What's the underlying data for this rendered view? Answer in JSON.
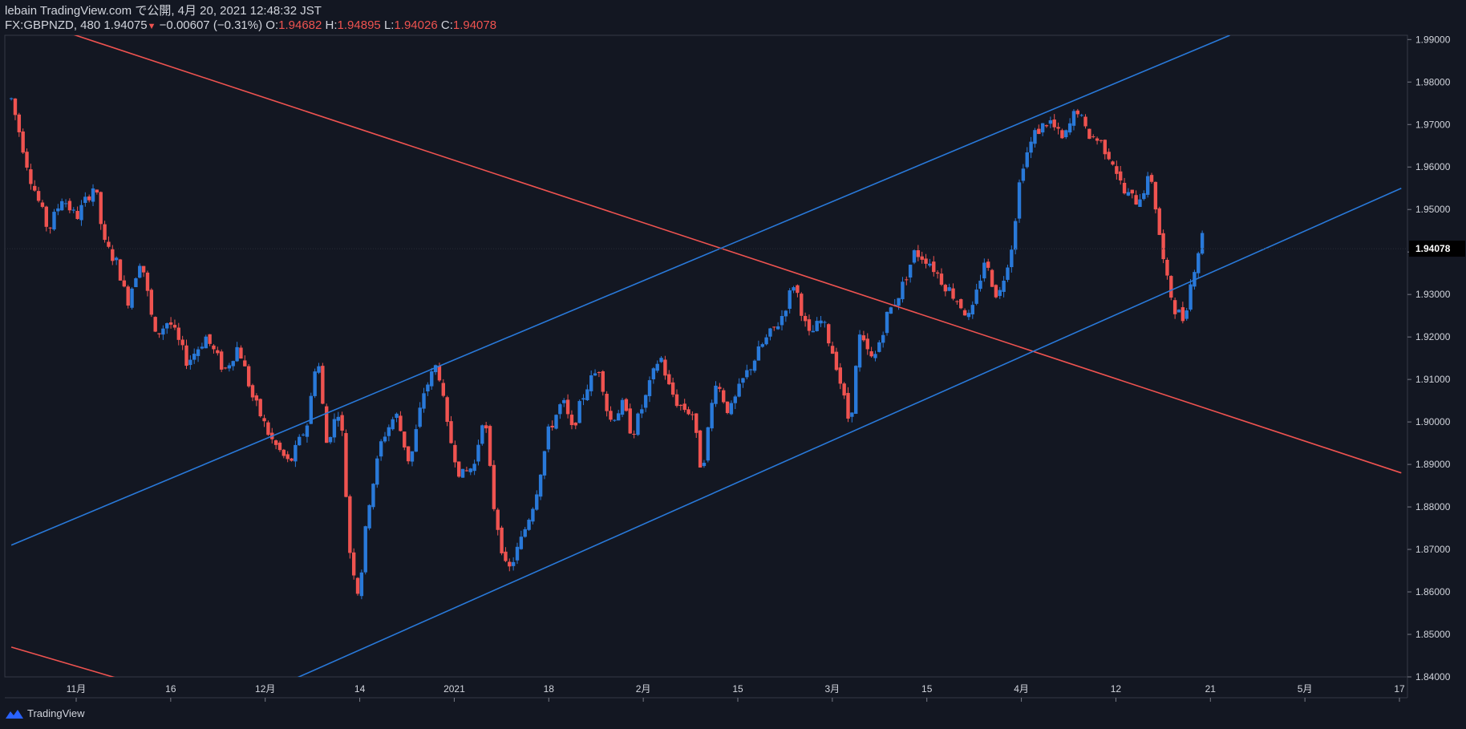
{
  "header": {
    "publish_line": "lebain TradingView.com で公開, 4月 20, 2021 12:48:32 JST",
    "symbol": "FX:GBPNZD, 480",
    "last": "1.94075",
    "change": "−0.00607 (−0.31%)",
    "o_label": "O:",
    "o": "1.94682",
    "h_label": "H:",
    "h": "1.94895",
    "l_label": "L:",
    "l": "1.94026",
    "c_label": "C:",
    "c": "1.94078"
  },
  "branding": {
    "label": "TradingView",
    "icon": "tradingview-logo-icon"
  },
  "colors": {
    "background": "#131722",
    "up": "#2979d9",
    "down": "#ef5350",
    "text": "#d1d4dc",
    "axis": "#363a45",
    "price_badge_bg": "#000000"
  },
  "chart_data": {
    "type": "candlestick",
    "title": "FX:GBPNZD, 480",
    "ylim": [
      1.84,
      1.991
    ],
    "y_ticks": [
      "1.99000",
      "1.98000",
      "1.97000",
      "1.96000",
      "1.95000",
      "1.94000",
      "1.93000",
      "1.92000",
      "1.91000",
      "1.90000",
      "1.89000",
      "1.88000",
      "1.87000",
      "1.86000",
      "1.85000",
      "1.84000"
    ],
    "last_price": "1.94078",
    "x_range": [
      0,
      1500
    ],
    "x_ticks": [
      {
        "label": "11月",
        "x": 70
      },
      {
        "label": "16",
        "x": 172
      },
      {
        "label": "12月",
        "x": 274
      },
      {
        "label": "14",
        "x": 376
      },
      {
        "label": "2021",
        "x": 478
      },
      {
        "label": "18",
        "x": 580
      },
      {
        "label": "2月",
        "x": 682
      },
      {
        "label": "15",
        "x": 784
      },
      {
        "label": "3月",
        "x": 886
      },
      {
        "label": "15",
        "x": 988
      },
      {
        "label": "4月",
        "x": 1090
      },
      {
        "label": "12",
        "x": 1192
      },
      {
        "label": "21",
        "x": 1294
      },
      {
        "label": "5月",
        "x": 1396
      },
      {
        "label": "17",
        "x": 1498
      }
    ],
    "path": [
      [
        0,
        1.976
      ],
      [
        20,
        1.958
      ],
      [
        40,
        1.945
      ],
      [
        55,
        1.953
      ],
      [
        70,
        1.948
      ],
      [
        90,
        1.956
      ],
      [
        100,
        1.942
      ],
      [
        115,
        1.937
      ],
      [
        125,
        1.928
      ],
      [
        140,
        1.939
      ],
      [
        155,
        1.92
      ],
      [
        170,
        1.924
      ],
      [
        190,
        1.914
      ],
      [
        210,
        1.92
      ],
      [
        230,
        1.912
      ],
      [
        245,
        1.918
      ],
      [
        260,
        1.906
      ],
      [
        280,
        1.896
      ],
      [
        300,
        1.89
      ],
      [
        320,
        1.9
      ],
      [
        330,
        1.917
      ],
      [
        340,
        1.895
      ],
      [
        355,
        1.904
      ],
      [
        365,
        1.87
      ],
      [
        375,
        1.859
      ],
      [
        385,
        1.88
      ],
      [
        400,
        1.896
      ],
      [
        415,
        1.902
      ],
      [
        430,
        1.89
      ],
      [
        445,
        1.907
      ],
      [
        460,
        1.914
      ],
      [
        470,
        1.899
      ],
      [
        485,
        1.887
      ],
      [
        500,
        1.89
      ],
      [
        510,
        1.903
      ],
      [
        520,
        1.881
      ],
      [
        535,
        1.864
      ],
      [
        550,
        1.872
      ],
      [
        565,
        1.882
      ],
      [
        580,
        1.898
      ],
      [
        595,
        1.905
      ],
      [
        605,
        1.898
      ],
      [
        620,
        1.908
      ],
      [
        635,
        1.913
      ],
      [
        645,
        1.9
      ],
      [
        660,
        1.904
      ],
      [
        670,
        1.897
      ],
      [
        685,
        1.906
      ],
      [
        700,
        1.916
      ],
      [
        710,
        1.908
      ],
      [
        720,
        1.904
      ],
      [
        735,
        1.902
      ],
      [
        745,
        1.888
      ],
      [
        760,
        1.91
      ],
      [
        775,
        1.902
      ],
      [
        790,
        1.91
      ],
      [
        810,
        1.918
      ],
      [
        830,
        1.924
      ],
      [
        845,
        1.933
      ],
      [
        860,
        1.92
      ],
      [
        875,
        1.924
      ],
      [
        890,
        1.914
      ],
      [
        905,
        1.899
      ],
      [
        915,
        1.92
      ],
      [
        930,
        1.914
      ],
      [
        945,
        1.925
      ],
      [
        960,
        1.931
      ],
      [
        975,
        1.94
      ],
      [
        990,
        1.938
      ],
      [
        1005,
        1.933
      ],
      [
        1020,
        1.929
      ],
      [
        1035,
        1.924
      ],
      [
        1050,
        1.938
      ],
      [
        1065,
        1.929
      ],
      [
        1080,
        1.942
      ],
      [
        1090,
        1.96
      ],
      [
        1105,
        1.968
      ],
      [
        1120,
        1.971
      ],
      [
        1135,
        1.966
      ],
      [
        1150,
        1.974
      ],
      [
        1160,
        1.968
      ],
      [
        1175,
        1.966
      ],
      [
        1190,
        1.961
      ],
      [
        1200,
        1.954
      ],
      [
        1215,
        1.952
      ],
      [
        1230,
        1.958
      ],
      [
        1245,
        1.935
      ],
      [
        1255,
        1.927
      ],
      [
        1265,
        1.924
      ],
      [
        1275,
        1.935
      ],
      [
        1285,
        1.944
      ],
      [
        1288,
        1.9408
      ]
    ],
    "trendlines": [
      {
        "color": "#ef5350",
        "from": [
          0,
          1.996
        ],
        "to": [
          1500,
          1.888
        ]
      },
      {
        "color": "#ef5350",
        "from": [
          0,
          1.847
        ],
        "to": [
          125,
          1.839
        ]
      },
      {
        "color": "#2979d9",
        "from": [
          0,
          1.871
        ],
        "to": [
          1315,
          1.991
        ]
      },
      {
        "color": "#2979d9",
        "from": [
          300,
          1.839
        ],
        "to": [
          1500,
          1.955
        ]
      }
    ]
  }
}
